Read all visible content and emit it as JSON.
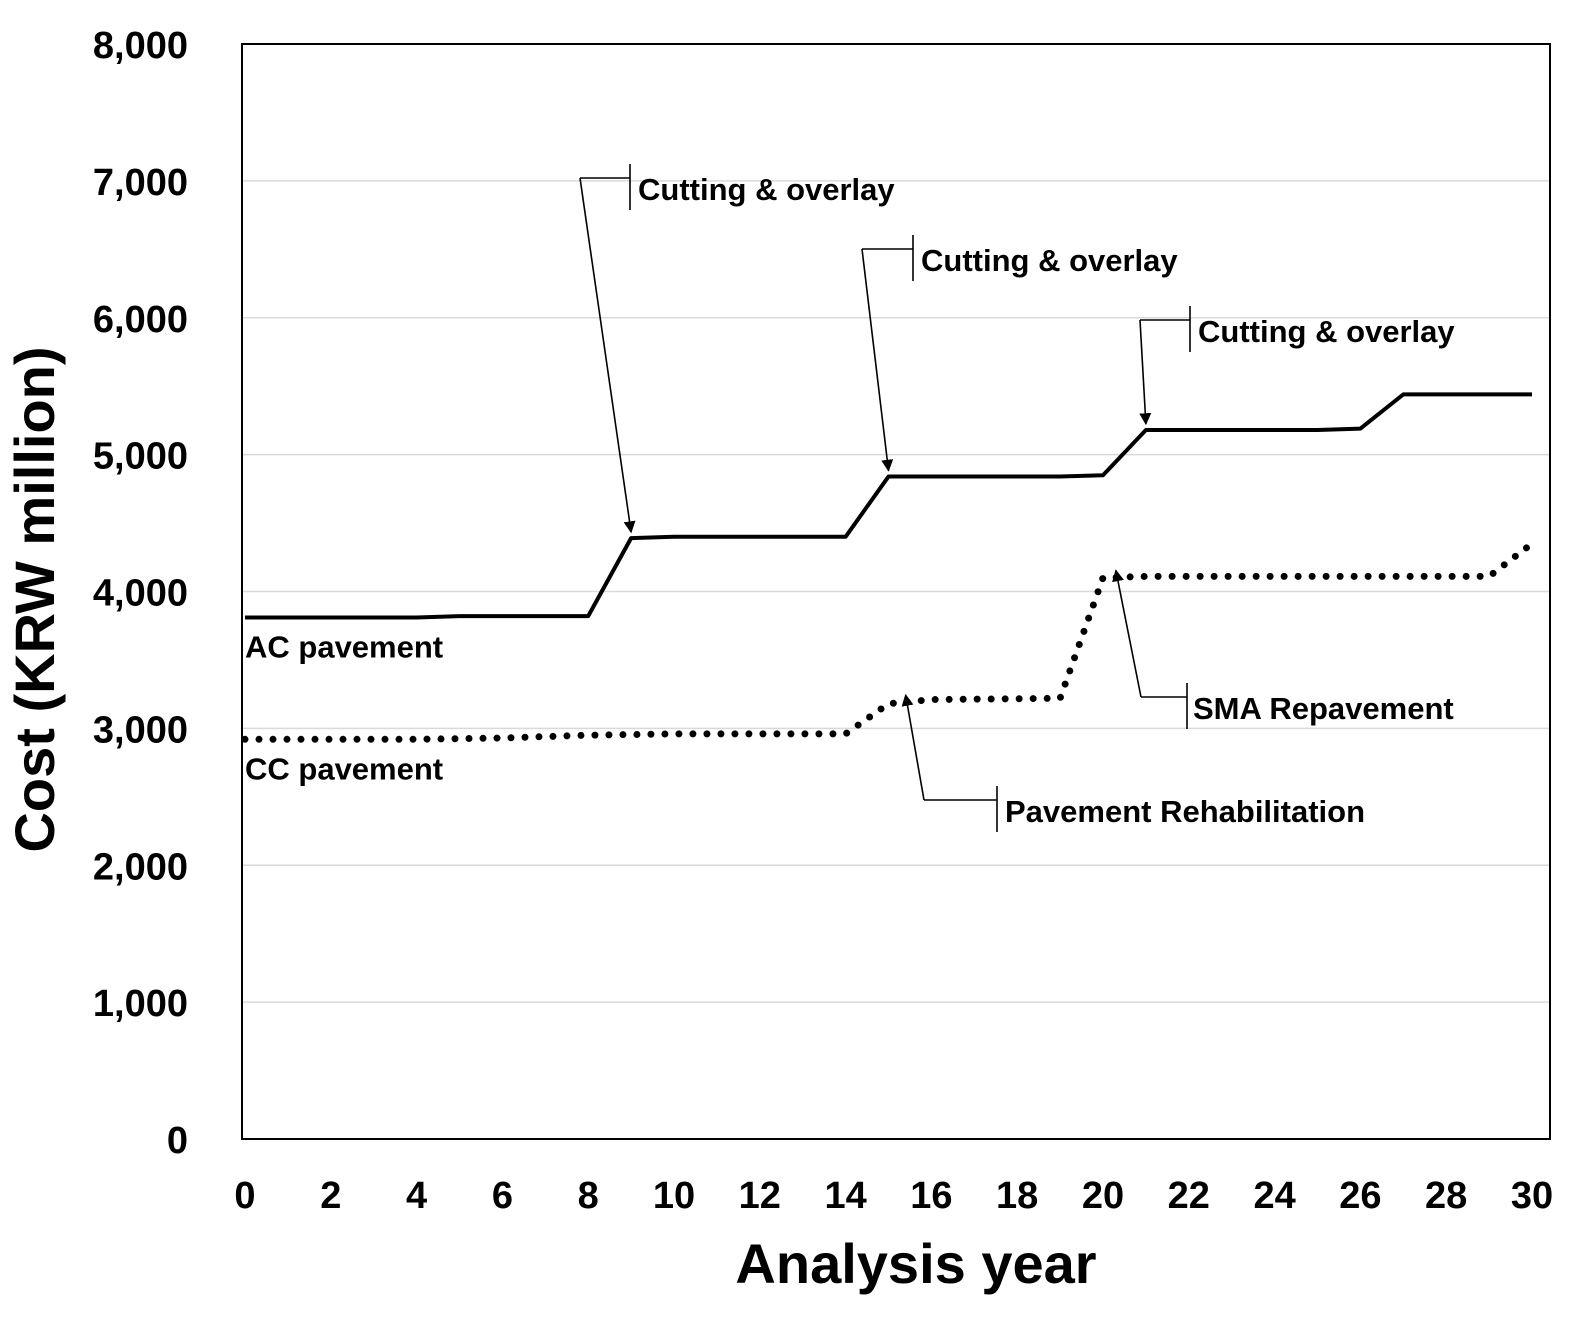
{
  "chart_data": {
    "type": "line",
    "title": "",
    "xlabel": "Analysis year",
    "ylabel": "Cost (KRW million)",
    "xlim": [
      0,
      30
    ],
    "ylim": [
      0,
      8000
    ],
    "xticks": [
      0,
      2,
      4,
      6,
      8,
      10,
      12,
      14,
      16,
      18,
      20,
      22,
      24,
      26,
      28,
      30
    ],
    "yticks": [
      0,
      1000,
      2000,
      3000,
      4000,
      5000,
      6000,
      7000,
      8000
    ],
    "ytick_labels": [
      "0",
      "1,000",
      "2,000",
      "3,000",
      "4,000",
      "5,000",
      "6,000",
      "7,000",
      "8,000"
    ],
    "grid": "horizontal",
    "legend": "none",
    "series": [
      {
        "name": "AC pavement",
        "style": "solid",
        "color": "#000000",
        "x": [
          0,
          4,
          5,
          8,
          9,
          10,
          14,
          15,
          19,
          20,
          21,
          25,
          26,
          27,
          30
        ],
        "y": [
          3810,
          3810,
          3820,
          3820,
          4390,
          4400,
          4400,
          4840,
          4840,
          4850,
          5180,
          5180,
          5190,
          5440,
          5440
        ]
      },
      {
        "name": "CC pavement",
        "style": "dotted",
        "color": "#000000",
        "x": [
          0,
          4,
          6,
          8,
          10,
          14,
          15,
          16,
          19,
          20,
          21,
          29,
          30
        ],
        "y": [
          2920,
          2920,
          2930,
          2950,
          2960,
          2960,
          3180,
          3210,
          3220,
          4100,
          4110,
          4110,
          4350
        ]
      }
    ],
    "annotations": [
      {
        "text": "Cutting & overlay",
        "target_x": 9,
        "target_y": 4390
      },
      {
        "text": "Cutting & overlay",
        "target_x": 15,
        "target_y": 4840
      },
      {
        "text": "Cutting & overlay",
        "target_x": 21,
        "target_y": 5180
      },
      {
        "text": "SMA Repavement",
        "target_x": 20.3,
        "target_y": 4110
      },
      {
        "text": "Pavement Rehabilitation",
        "target_x": 15.4,
        "target_y": 3200
      }
    ]
  }
}
